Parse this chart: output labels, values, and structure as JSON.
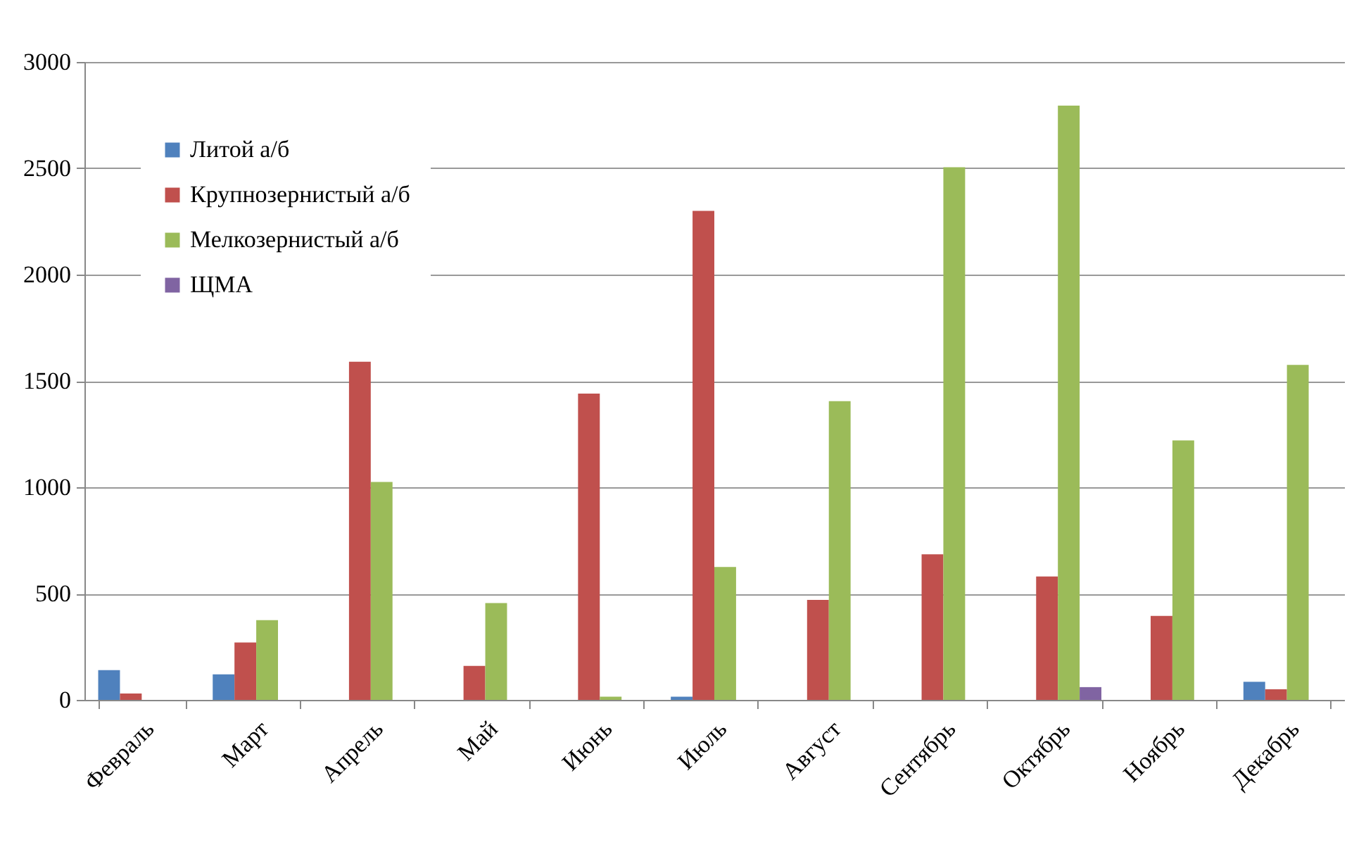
{
  "chart_data": {
    "type": "bar",
    "categories": [
      "Февраль",
      "Март",
      "Апрель",
      "Май",
      "Июнь",
      "Июль",
      "Август",
      "Сентябрь",
      "Октябрь",
      "Ноябрь",
      "Декабрь"
    ],
    "series": [
      {
        "name": "Литой а/б",
        "color": "#4f81bd",
        "values": [
          140,
          120,
          null,
          null,
          null,
          15,
          null,
          null,
          null,
          null,
          85
        ]
      },
      {
        "name": "Крупнозернистый а/б",
        "color": "#c0504d",
        "values": [
          30,
          270,
          1590,
          160,
          1440,
          2300,
          470,
          685,
          580,
          395,
          50
        ]
      },
      {
        "name": "Мелкозернистый а/б",
        "color": "#9bbb59",
        "values": [
          null,
          375,
          1025,
          455,
          15,
          625,
          1405,
          2505,
          2795,
          1220,
          1575
        ]
      },
      {
        "name": "ЩМА",
        "color": "#8064a2",
        "values": [
          null,
          null,
          null,
          null,
          null,
          null,
          null,
          null,
          60,
          null,
          null
        ]
      }
    ],
    "ylim": [
      0,
      3000
    ],
    "yticks": [
      0,
      500,
      1000,
      1500,
      2000,
      2500,
      3000
    ],
    "grid": "y",
    "legend": "top left"
  }
}
